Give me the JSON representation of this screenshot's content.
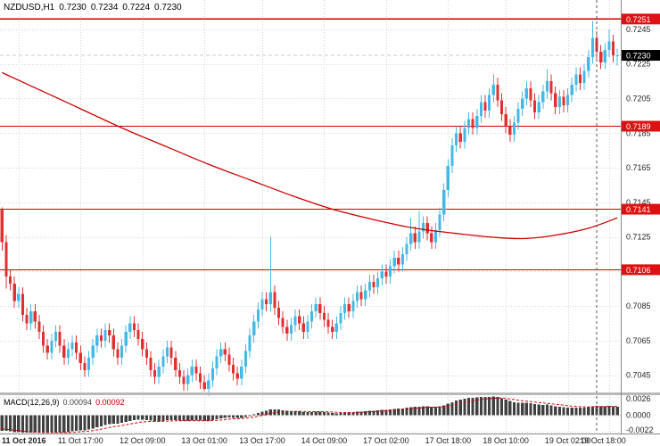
{
  "header": {
    "symbol": "NZDUSD,H1",
    "open": "0.7230",
    "high": "0.7234",
    "low": "0.7224",
    "close": "0.7230"
  },
  "indicator": {
    "name": "MACD(12,26,9)",
    "value": "0.00094",
    "signal_value": "0.00092"
  },
  "colors": {
    "bull": "#45b9e6",
    "bear": "#e03030",
    "hline": "#cc0000",
    "ma": "#cc0000",
    "tag_red": "#dd1111",
    "tag_black": "#000000",
    "grid": "#d4d4d4",
    "macd_hist": "#404040",
    "macd_signal": "#cc0000",
    "axis_text": "#222222"
  },
  "chart_data": {
    "type": "candlestick",
    "symbol": "NZDUSD",
    "timeframe": "H1",
    "title": "NZDUSD,H1 0.7230 0.7234 0.7224 0.7230",
    "x_labels": [
      "11 Oct 2016",
      "11 Oct 17:00",
      "12 Oct 09:00",
      "13 Oct 01:00",
      "13 Oct 17:00",
      "14 Oct 09:00",
      "17 Oct 02:00",
      "17 Oct 18:00",
      "18 Oct 10:00",
      "19 Oct 02:00",
      "19 Oct 18:00"
    ],
    "tick_indices": [
      4,
      19,
      34,
      49,
      63,
      78,
      93,
      108,
      122,
      137,
      147
    ],
    "y_axis_labels": [
      "0.7245",
      "0.7225",
      "0.7205",
      "0.7185",
      "0.7165",
      "0.7145",
      "0.7125",
      "0.7105",
      "0.7085",
      "0.7065",
      "0.7045"
    ],
    "y_range": [
      0.7035,
      0.7262
    ],
    "h_lines": [
      0.7251,
      0.7189,
      0.7141,
      0.7106
    ],
    "price_tags": [
      {
        "price": 0.7251,
        "label": "0.7251",
        "type": "red"
      },
      {
        "price": 0.723,
        "label": "0.7230",
        "type": "black"
      },
      {
        "price": 0.7189,
        "label": "0.7189",
        "type": "red"
      },
      {
        "price": 0.7141,
        "label": "0.7141",
        "type": "red"
      },
      {
        "price": 0.7106,
        "label": "0.7106",
        "type": "red"
      }
    ],
    "current_price": 0.723,
    "first_open": 0.7141,
    "closes": [
      0.7122,
      0.7102,
      0.7098,
      0.7088,
      0.7092,
      0.708,
      0.7075,
      0.7082,
      0.7076,
      0.707,
      0.7062,
      0.7058,
      0.7065,
      0.707,
      0.7062,
      0.7055,
      0.706,
      0.7064,
      0.7058,
      0.7052,
      0.7048,
      0.7055,
      0.7062,
      0.7068,
      0.7065,
      0.7071,
      0.7068,
      0.706,
      0.7055,
      0.7062,
      0.707,
      0.7075,
      0.7071,
      0.7066,
      0.706,
      0.7055,
      0.7048,
      0.7044,
      0.705,
      0.7056,
      0.7061,
      0.7055,
      0.7048,
      0.7044,
      0.704,
      0.7045,
      0.705,
      0.7046,
      0.7041,
      0.7037,
      0.7042,
      0.7049,
      0.7056,
      0.706,
      0.7057,
      0.7051,
      0.7046,
      0.7043,
      0.705,
      0.7059,
      0.7068,
      0.7076,
      0.7083,
      0.7089,
      0.7086,
      0.7093,
      0.7084,
      0.7078,
      0.7073,
      0.7069,
      0.7074,
      0.7079,
      0.7075,
      0.707,
      0.7076,
      0.7082,
      0.7086,
      0.7081,
      0.7077,
      0.7073,
      0.707,
      0.7075,
      0.7081,
      0.7086,
      0.7082,
      0.7088,
      0.7093,
      0.7089,
      0.7094,
      0.7099,
      0.7096,
      0.7101,
      0.7105,
      0.7102,
      0.7108,
      0.7113,
      0.7109,
      0.7115,
      0.7121,
      0.7127,
      0.7122,
      0.7128,
      0.7133,
      0.7127,
      0.7122,
      0.7129,
      0.7138,
      0.7152,
      0.7166,
      0.7178,
      0.7185,
      0.718,
      0.7188,
      0.7193,
      0.7188,
      0.7195,
      0.7203,
      0.7198,
      0.7207,
      0.7213,
      0.7204,
      0.7196,
      0.7189,
      0.7184,
      0.7191,
      0.7199,
      0.7205,
      0.7211,
      0.7204,
      0.7197,
      0.7203,
      0.7209,
      0.7215,
      0.7208,
      0.72,
      0.7206,
      0.7201,
      0.7207,
      0.7213,
      0.7219,
      0.7214,
      0.7221,
      0.7229,
      0.724,
      0.7232,
      0.7226,
      0.7233,
      0.7238,
      0.723,
      0.723
    ],
    "wick_overrides": {
      "0": {
        "high": 0.7142,
        "low": 0.7117
      },
      "1": {
        "low": 0.7095
      },
      "44": {
        "low": 0.7036
      },
      "49": {
        "low": 0.7036
      },
      "65": {
        "high": 0.7125
      },
      "99": {
        "high": 0.7136
      },
      "101": {
        "high": 0.714
      },
      "119": {
        "high": 0.7219
      },
      "132": {
        "high": 0.7222
      },
      "143": {
        "high": 0.725
      },
      "147": {
        "high": 0.7245
      },
      "149": {
        "high": 0.7234,
        "low": 0.7224
      }
    },
    "ma_points": [
      [
        0,
        0.722
      ],
      [
        10,
        0.7209
      ],
      [
        20,
        0.7198
      ],
      [
        30,
        0.7187
      ],
      [
        40,
        0.7177
      ],
      [
        50,
        0.7167
      ],
      [
        60,
        0.7158
      ],
      [
        70,
        0.7149
      ],
      [
        80,
        0.7141
      ],
      [
        90,
        0.7135
      ],
      [
        100,
        0.713
      ],
      [
        110,
        0.7127
      ],
      [
        118,
        0.7125
      ],
      [
        126,
        0.7124
      ],
      [
        134,
        0.7126
      ],
      [
        142,
        0.713
      ],
      [
        149,
        0.7136
      ]
    ],
    "vline_index": 144,
    "macd_levels": [
      {
        "v": 0.0026,
        "label": "0.0026"
      },
      {
        "v": 0.0,
        "label": "0.0000"
      },
      {
        "v": -0.0022,
        "label": "-0.0022"
      }
    ],
    "macd_range": [
      -0.0025,
      0.0028
    ],
    "macd_seed": {
      "ema12": 0.713,
      "ema26": 0.7152,
      "signal": -0.0018
    }
  }
}
